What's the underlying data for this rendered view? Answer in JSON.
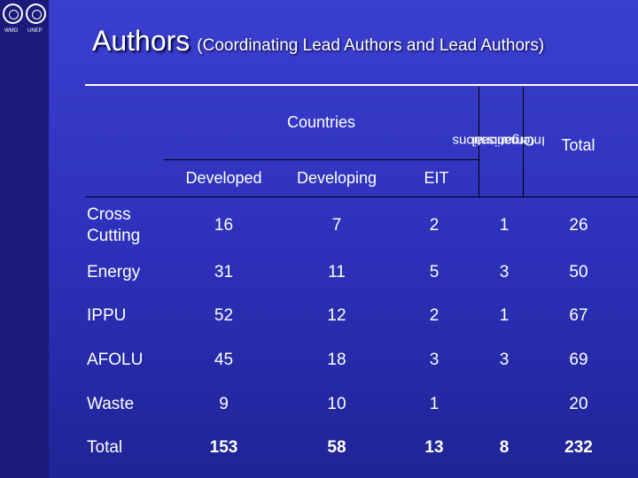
{
  "title": {
    "main": "Authors",
    "sub": "(Coordinating Lead Authors and Lead Authors)"
  },
  "logos": [
    "WMO",
    "UNEP"
  ],
  "table": {
    "group_header": "Countries",
    "columns": [
      "Developed",
      "Developing",
      "EIT",
      "International Organisations",
      "Total"
    ],
    "international_lines": [
      "International",
      "Organisations"
    ],
    "rows": [
      {
        "label": "Cross Cutting",
        "label_lines": [
          "Cross",
          "Cutting"
        ],
        "values": [
          "16",
          "7",
          "2",
          "1",
          "26"
        ]
      },
      {
        "label": "Energy",
        "values": [
          "31",
          "11",
          "5",
          "3",
          "50"
        ]
      },
      {
        "label": "IPPU",
        "values": [
          "52",
          "12",
          "2",
          "1",
          "67"
        ]
      },
      {
        "label": "AFOLU",
        "values": [
          "45",
          "18",
          "3",
          "3",
          "69"
        ]
      },
      {
        "label": "Waste",
        "values": [
          "9",
          "10",
          "1",
          "",
          "20"
        ]
      },
      {
        "label": "Total",
        "values": [
          "153",
          "58",
          "13",
          "8",
          "232"
        ]
      }
    ]
  }
}
